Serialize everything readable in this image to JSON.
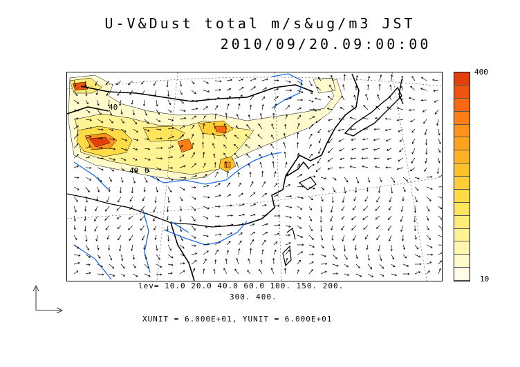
{
  "title_line1": "U-V&Dust total m/s&ug/m3 JST",
  "title_line2": "2010/09/20.09:00:00",
  "map": {
    "contour_label_40a": "40",
    "contour_label_40b": "40",
    "contour_label_0": "0"
  },
  "colorbar": {
    "max_label": "400",
    "min_label": "10",
    "colors": [
      "#fffde8",
      "#fffbcc",
      "#fff7b0",
      "#fff394",
      "#ffed78",
      "#ffe55c",
      "#ffdc46",
      "#ffd035",
      "#ffc22a",
      "#ffb324",
      "#ffa31f",
      "#ff921a",
      "#ff7f16",
      "#fb6a12",
      "#f0530e",
      "#e4400b"
    ]
  },
  "legend": {
    "levels_line1": "lev= 10.0 20.0 40.0 60.0 100. 150. 200.",
    "levels_line2": "300. 400.",
    "units_line": "XUNIT = 6.000E+01, YUNIT = 6.000E+01"
  }
}
